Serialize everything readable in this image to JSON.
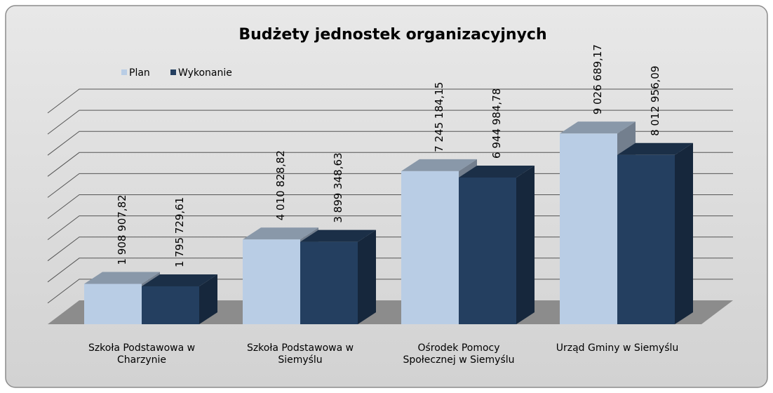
{
  "chart_data": {
    "type": "bar3d",
    "title": "Budżety jednostek organizacyjnych",
    "categories": [
      "Szkoła Podstawowa w Charzynie",
      "Szkoła Podstawowa w Siemyślu",
      "Ośrodek Pomocy Społecznej w Siemyślu",
      "Urząd Gminy w Siemyślu"
    ],
    "series": [
      {
        "name": "Plan",
        "color": "#b9cde5",
        "values": [
          1908907.82,
          4010828.82,
          7245184.15,
          9026689.17
        ],
        "value_labels": [
          "1 908 907,82",
          "4 010 828,82",
          "7 245 184,15",
          "9 026 689,17"
        ]
      },
      {
        "name": "Wykonanie",
        "color": "#243f60",
        "values": [
          1795729.61,
          3899348.63,
          6944984.78,
          8012956.09
        ],
        "value_labels": [
          "1 795 729,61",
          "3 899 348,63",
          "6 944 984,78",
          "8 012 956,09"
        ]
      }
    ],
    "ylim": [
      0,
      10000000
    ],
    "yticks": [
      0,
      1000000,
      2000000,
      3000000,
      4000000,
      5000000,
      6000000,
      7000000,
      8000000,
      9000000,
      10000000
    ],
    "grid": true,
    "legend": "top-left"
  }
}
